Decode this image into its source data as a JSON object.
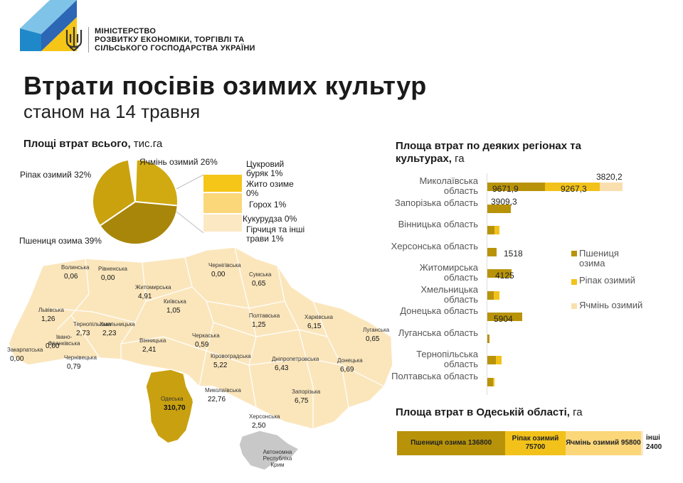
{
  "ministry": {
    "lines": [
      "МІНІСТЕРСТВО",
      "РОЗВИТКУ ЕКОНОМІКИ, ТОРГІВЛІ ТА",
      "СІЛЬСЬКОГО ГОСПОДАРСТВА УКРАЇНИ"
    ]
  },
  "header": {
    "title": "Втрати посівів озимих культур",
    "subtitle": "станом на 14 травня"
  },
  "colors": {
    "wheat": "#b8930a",
    "rapeseed": "#f2c21b",
    "barley": "#fadfae",
    "map_fill": "#fbe6bc",
    "map_border": "#ffffff",
    "odesa": "#c9a00f",
    "crimea": "#c8c8c8"
  },
  "chart_data": [
    {
      "type": "pie",
      "title": "Площі втрат всього,",
      "unit": "тис.га",
      "slices": [
        {
          "label": "Ячмінь озимий 26%",
          "value": 26
        },
        {
          "label": "Пшениця озима 39%",
          "value": 39
        },
        {
          "label": "Ріпак озимий 32%",
          "value": 32
        }
      ],
      "breakout": [
        {
          "label": "Цукровий буряк 1%",
          "value": 1
        },
        {
          "label": "Жито озиме 0%",
          "value": 0
        },
        {
          "label": "Горох 1%",
          "value": 1
        },
        {
          "label": "Кукурудза 0%",
          "value": 0
        },
        {
          "label": "Гірчиця та інші трави 1%",
          "value": 1
        }
      ]
    },
    {
      "type": "bar",
      "stacked": true,
      "orientation": "horizontal",
      "title": "Площа втрат по деяких регіонах та культурах,",
      "unit": "га",
      "categories": [
        "Миколаївська область",
        "Запорізька область",
        "Вінницька область",
        "Херсонська область",
        "Житомирська область",
        "Хмельницька область",
        "Донецька область",
        "Луганська область",
        "Тернопільська область",
        "Полтавська область"
      ],
      "series": [
        {
          "name": "Пшениця озима",
          "values": [
            9671.9,
            3909.3,
            1200,
            1518,
            4125,
            1100,
            5904,
            300,
            1400,
            900
          ]
        },
        {
          "name": "Ріпак озимий",
          "values": [
            9267.3,
            0,
            800,
            0,
            0,
            900,
            0,
            0,
            1000,
            300
          ]
        },
        {
          "name": "Ячмінь озимий",
          "values": [
            3820.2,
            0,
            0,
            0,
            0,
            0,
            0,
            0,
            0,
            0
          ]
        }
      ],
      "data_labels": [
        {
          "category": 0,
          "series": 0,
          "text": "9671,9"
        },
        {
          "category": 0,
          "series": 1,
          "text": "9267,3"
        },
        {
          "category": 0,
          "series": 2,
          "text": "3820,2"
        },
        {
          "category": 1,
          "series": 0,
          "text": "3909,3"
        },
        {
          "category": 3,
          "series": 0,
          "text": "1518"
        },
        {
          "category": 4,
          "series": 0,
          "text": "4125"
        },
        {
          "category": 6,
          "series": 0,
          "text": "5904"
        }
      ],
      "legend_placement": "right"
    },
    {
      "type": "bar",
      "stacked": true,
      "orientation": "horizontal",
      "title": "Площа втрат в Одеській області,",
      "unit": "га",
      "segments": [
        {
          "label": "Пшениця озима 136800",
          "value": 136800
        },
        {
          "label": "Ріпак озимий 75700",
          "value": 75700
        },
        {
          "label": "Ячмінь озимий 95800",
          "value": 95800
        },
        {
          "label": "інші 2400",
          "value": 2400
        }
      ]
    }
  ],
  "map": {
    "regions": [
      {
        "name": "Волинська",
        "value": "0,06"
      },
      {
        "name": "Рівненська",
        "value": "0,00"
      },
      {
        "name": "Житомирська",
        "value": "4,91"
      },
      {
        "name": "Чернігівська",
        "value": "0,00"
      },
      {
        "name": "Сумська",
        "value": "0,65"
      },
      {
        "name": "Київська",
        "value": "1,05"
      },
      {
        "name": "Львівська",
        "value": "1,26"
      },
      {
        "name": "Тернопільська",
        "value": "2,73"
      },
      {
        "name": "Хмельницька",
        "value": "2,23"
      },
      {
        "name": "Полтавська",
        "value": "1,25"
      },
      {
        "name": "Харківська",
        "value": "6,15"
      },
      {
        "name": "Луганська",
        "value": "0,65"
      },
      {
        "name": "Івано-Франківська",
        "value": "0,00"
      },
      {
        "name": "Закарпатська",
        "value": "0,00"
      },
      {
        "name": "Чернівецька",
        "value": "0,79"
      },
      {
        "name": "Вінницька",
        "value": "2,41"
      },
      {
        "name": "Черкаська",
        "value": "0,59"
      },
      {
        "name": "Кіровоградська",
        "value": "5,22"
      },
      {
        "name": "Дніпропетровська",
        "value": "6,43"
      },
      {
        "name": "Донецька",
        "value": "6,69"
      },
      {
        "name": "Одеська",
        "value": "310,70"
      },
      {
        "name": "Миколаївська",
        "value": "22,76"
      },
      {
        "name": "Запорізька",
        "value": "6,75"
      },
      {
        "name": "Херсонська",
        "value": "2,50"
      },
      {
        "name": "Автономна Республіка Крим",
        "value": ""
      }
    ]
  }
}
